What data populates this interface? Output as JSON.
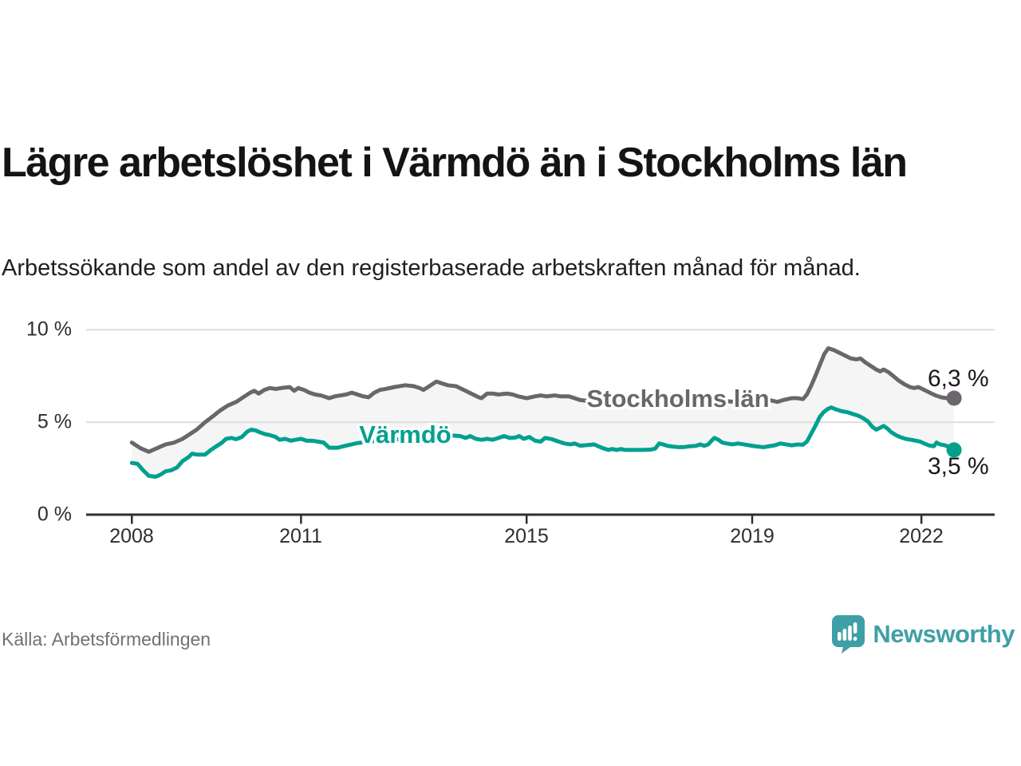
{
  "title": "Lägre arbetslöshet i Värmdö än i Stockholms län",
  "subtitle": "Arbetssökande som andel av den registerbaserade arbetskraften månad för månad.",
  "source": "Källa: Arbetsförmedlingen",
  "brand": {
    "name": "Newsworthy",
    "color": "#3f9fa6",
    "icon": "newsworthy-badge-icon"
  },
  "chart_data": {
    "type": "line",
    "unit": "%",
    "grid": "horizontal",
    "ylim": [
      0,
      10.5
    ],
    "x_range": [
      2008.0,
      2022.58
    ],
    "y_ticks": [
      0,
      5,
      10
    ],
    "y_tick_labels": [
      "0 %",
      "5 %",
      "10 %"
    ],
    "x_ticks": [
      2008,
      2011,
      2015,
      2019,
      2022
    ],
    "x_tick_labels": [
      "2008",
      "2011",
      "2015",
      "2019",
      "2022"
    ],
    "band_fill": "#f5f5f5",
    "gridline_color": "#dedede",
    "axis_color": "#2f2f2f",
    "series": [
      {
        "name": "Stockholms län",
        "color": "#6b656c",
        "end_label": "6,3 %",
        "end_value": 6.3,
        "points": [
          [
            2008.0,
            3.9
          ],
          [
            2008.15,
            3.6
          ],
          [
            2008.3,
            3.4
          ],
          [
            2008.45,
            3.6
          ],
          [
            2008.6,
            3.8
          ],
          [
            2008.75,
            3.9
          ],
          [
            2008.9,
            4.1
          ],
          [
            2009.0,
            4.3
          ],
          [
            2009.15,
            4.6
          ],
          [
            2009.3,
            5.0
          ],
          [
            2009.45,
            5.35
          ],
          [
            2009.55,
            5.6
          ],
          [
            2009.7,
            5.9
          ],
          [
            2009.85,
            6.1
          ],
          [
            2010.0,
            6.4
          ],
          [
            2010.1,
            6.6
          ],
          [
            2010.17,
            6.7
          ],
          [
            2010.25,
            6.55
          ],
          [
            2010.35,
            6.75
          ],
          [
            2010.45,
            6.85
          ],
          [
            2010.55,
            6.8
          ],
          [
            2010.65,
            6.85
          ],
          [
            2010.8,
            6.9
          ],
          [
            2010.88,
            6.7
          ],
          [
            2010.95,
            6.85
          ],
          [
            2011.05,
            6.75
          ],
          [
            2011.15,
            6.6
          ],
          [
            2011.25,
            6.5
          ],
          [
            2011.35,
            6.45
          ],
          [
            2011.5,
            6.3
          ],
          [
            2011.6,
            6.4
          ],
          [
            2011.7,
            6.45
          ],
          [
            2011.8,
            6.5
          ],
          [
            2011.9,
            6.6
          ],
          [
            2012.0,
            6.5
          ],
          [
            2012.1,
            6.4
          ],
          [
            2012.2,
            6.35
          ],
          [
            2012.3,
            6.6
          ],
          [
            2012.4,
            6.75
          ],
          [
            2012.5,
            6.8
          ],
          [
            2012.65,
            6.9
          ],
          [
            2012.75,
            6.95
          ],
          [
            2012.85,
            7.0
          ],
          [
            2013.0,
            6.95
          ],
          [
            2013.1,
            6.85
          ],
          [
            2013.17,
            6.75
          ],
          [
            2013.25,
            6.9
          ],
          [
            2013.4,
            7.2
          ],
          [
            2013.5,
            7.1
          ],
          [
            2013.6,
            7.0
          ],
          [
            2013.75,
            6.95
          ],
          [
            2013.85,
            6.8
          ],
          [
            2013.95,
            6.65
          ],
          [
            2014.05,
            6.5
          ],
          [
            2014.15,
            6.35
          ],
          [
            2014.2,
            6.3
          ],
          [
            2014.3,
            6.55
          ],
          [
            2014.4,
            6.55
          ],
          [
            2014.5,
            6.5
          ],
          [
            2014.65,
            6.55
          ],
          [
            2014.75,
            6.5
          ],
          [
            2014.85,
            6.4
          ],
          [
            2015.0,
            6.3
          ],
          [
            2015.15,
            6.4
          ],
          [
            2015.25,
            6.45
          ],
          [
            2015.35,
            6.4
          ],
          [
            2015.5,
            6.45
          ],
          [
            2015.6,
            6.4
          ],
          [
            2015.75,
            6.4
          ],
          [
            2015.85,
            6.3
          ],
          [
            2015.95,
            6.2
          ],
          [
            2016.1,
            6.15
          ],
          [
            2016.3,
            6.2
          ],
          [
            2016.5,
            6.25
          ],
          [
            2016.7,
            6.2
          ],
          [
            2016.9,
            6.15
          ],
          [
            2017.1,
            6.2
          ],
          [
            2017.3,
            6.15
          ],
          [
            2017.5,
            6.1
          ],
          [
            2017.7,
            6.15
          ],
          [
            2017.9,
            6.1
          ],
          [
            2018.1,
            6.15
          ],
          [
            2018.3,
            6.2
          ],
          [
            2018.5,
            6.15
          ],
          [
            2018.7,
            6.1
          ],
          [
            2018.9,
            6.15
          ],
          [
            2019.1,
            6.2
          ],
          [
            2019.3,
            6.2
          ],
          [
            2019.45,
            6.1
          ],
          [
            2019.55,
            6.2
          ],
          [
            2019.7,
            6.3
          ],
          [
            2019.8,
            6.3
          ],
          [
            2019.9,
            6.25
          ],
          [
            2019.97,
            6.5
          ],
          [
            2020.05,
            7.0
          ],
          [
            2020.12,
            7.5
          ],
          [
            2020.2,
            8.1
          ],
          [
            2020.28,
            8.7
          ],
          [
            2020.35,
            9.0
          ],
          [
            2020.45,
            8.9
          ],
          [
            2020.55,
            8.75
          ],
          [
            2020.65,
            8.6
          ],
          [
            2020.75,
            8.45
          ],
          [
            2020.85,
            8.4
          ],
          [
            2020.92,
            8.45
          ],
          [
            2021.0,
            8.25
          ],
          [
            2021.1,
            8.05
          ],
          [
            2021.2,
            7.85
          ],
          [
            2021.27,
            7.75
          ],
          [
            2021.33,
            7.85
          ],
          [
            2021.42,
            7.7
          ],
          [
            2021.5,
            7.5
          ],
          [
            2021.6,
            7.25
          ],
          [
            2021.7,
            7.05
          ],
          [
            2021.8,
            6.9
          ],
          [
            2021.87,
            6.85
          ],
          [
            2021.95,
            6.9
          ],
          [
            2022.05,
            6.75
          ],
          [
            2022.15,
            6.6
          ],
          [
            2022.25,
            6.45
          ],
          [
            2022.35,
            6.35
          ],
          [
            2022.45,
            6.3
          ],
          [
            2022.55,
            6.35
          ],
          [
            2022.58,
            6.3
          ]
        ]
      },
      {
        "name": "Värmdö",
        "color": "#00a08f",
        "end_label": "3,5 %",
        "end_value": 3.5,
        "points": [
          [
            2008.0,
            2.8
          ],
          [
            2008.1,
            2.75
          ],
          [
            2008.2,
            2.4
          ],
          [
            2008.3,
            2.1
          ],
          [
            2008.42,
            2.05
          ],
          [
            2008.5,
            2.15
          ],
          [
            2008.6,
            2.35
          ],
          [
            2008.7,
            2.4
          ],
          [
            2008.8,
            2.55
          ],
          [
            2008.9,
            2.9
          ],
          [
            2009.0,
            3.1
          ],
          [
            2009.07,
            3.3
          ],
          [
            2009.15,
            3.25
          ],
          [
            2009.3,
            3.25
          ],
          [
            2009.4,
            3.5
          ],
          [
            2009.5,
            3.7
          ],
          [
            2009.6,
            3.9
          ],
          [
            2009.67,
            4.1
          ],
          [
            2009.77,
            4.15
          ],
          [
            2009.85,
            4.08
          ],
          [
            2009.95,
            4.2
          ],
          [
            2010.05,
            4.5
          ],
          [
            2010.12,
            4.6
          ],
          [
            2010.2,
            4.55
          ],
          [
            2010.27,
            4.45
          ],
          [
            2010.37,
            4.35
          ],
          [
            2010.45,
            4.3
          ],
          [
            2010.55,
            4.2
          ],
          [
            2010.62,
            4.05
          ],
          [
            2010.72,
            4.1
          ],
          [
            2010.82,
            4.0
          ],
          [
            2010.9,
            4.05
          ],
          [
            2011.0,
            4.1
          ],
          [
            2011.1,
            4.0
          ],
          [
            2011.2,
            4.0
          ],
          [
            2011.3,
            3.95
          ],
          [
            2011.4,
            3.9
          ],
          [
            2011.5,
            3.62
          ],
          [
            2011.65,
            3.62
          ],
          [
            2011.75,
            3.7
          ],
          [
            2011.85,
            3.77
          ],
          [
            2012.0,
            3.87
          ],
          [
            2012.2,
            3.95
          ],
          [
            2012.4,
            4.0
          ],
          [
            2012.6,
            4.05
          ],
          [
            2012.8,
            4.1
          ],
          [
            2013.0,
            4.2
          ],
          [
            2013.25,
            4.3
          ],
          [
            2013.5,
            4.3
          ],
          [
            2013.7,
            4.28
          ],
          [
            2013.82,
            4.25
          ],
          [
            2013.92,
            4.15
          ],
          [
            2014.0,
            4.25
          ],
          [
            2014.1,
            4.1
          ],
          [
            2014.2,
            4.05
          ],
          [
            2014.3,
            4.1
          ],
          [
            2014.4,
            4.05
          ],
          [
            2014.5,
            4.15
          ],
          [
            2014.6,
            4.25
          ],
          [
            2014.7,
            4.15
          ],
          [
            2014.8,
            4.17
          ],
          [
            2014.87,
            4.25
          ],
          [
            2014.95,
            4.1
          ],
          [
            2015.05,
            4.2
          ],
          [
            2015.15,
            4.0
          ],
          [
            2015.25,
            3.95
          ],
          [
            2015.33,
            4.15
          ],
          [
            2015.45,
            4.08
          ],
          [
            2015.57,
            3.95
          ],
          [
            2015.67,
            3.85
          ],
          [
            2015.78,
            3.8
          ],
          [
            2015.85,
            3.85
          ],
          [
            2015.95,
            3.73
          ],
          [
            2016.1,
            3.77
          ],
          [
            2016.2,
            3.8
          ],
          [
            2016.27,
            3.7
          ],
          [
            2016.35,
            3.6
          ],
          [
            2016.45,
            3.5
          ],
          [
            2016.52,
            3.55
          ],
          [
            2016.6,
            3.5
          ],
          [
            2016.67,
            3.55
          ],
          [
            2016.75,
            3.5
          ],
          [
            2016.9,
            3.5
          ],
          [
            2017.05,
            3.5
          ],
          [
            2017.2,
            3.52
          ],
          [
            2017.28,
            3.57
          ],
          [
            2017.35,
            3.85
          ],
          [
            2017.42,
            3.8
          ],
          [
            2017.5,
            3.72
          ],
          [
            2017.6,
            3.68
          ],
          [
            2017.7,
            3.65
          ],
          [
            2017.8,
            3.66
          ],
          [
            2017.9,
            3.7
          ],
          [
            2018.0,
            3.72
          ],
          [
            2018.08,
            3.8
          ],
          [
            2018.15,
            3.72
          ],
          [
            2018.22,
            3.8
          ],
          [
            2018.28,
            4.0
          ],
          [
            2018.33,
            4.15
          ],
          [
            2018.4,
            4.05
          ],
          [
            2018.47,
            3.9
          ],
          [
            2018.55,
            3.85
          ],
          [
            2018.65,
            3.8
          ],
          [
            2018.75,
            3.85
          ],
          [
            2018.85,
            3.8
          ],
          [
            2018.95,
            3.75
          ],
          [
            2019.05,
            3.7
          ],
          [
            2019.2,
            3.65
          ],
          [
            2019.3,
            3.7
          ],
          [
            2019.4,
            3.75
          ],
          [
            2019.5,
            3.85
          ],
          [
            2019.6,
            3.8
          ],
          [
            2019.7,
            3.75
          ],
          [
            2019.82,
            3.8
          ],
          [
            2019.9,
            3.78
          ],
          [
            2019.97,
            3.95
          ],
          [
            2020.05,
            4.4
          ],
          [
            2020.12,
            4.8
          ],
          [
            2020.2,
            5.3
          ],
          [
            2020.27,
            5.55
          ],
          [
            2020.33,
            5.7
          ],
          [
            2020.4,
            5.8
          ],
          [
            2020.48,
            5.7
          ],
          [
            2020.58,
            5.6
          ],
          [
            2020.68,
            5.55
          ],
          [
            2020.78,
            5.45
          ],
          [
            2020.88,
            5.35
          ],
          [
            2020.95,
            5.25
          ],
          [
            2021.05,
            5.05
          ],
          [
            2021.13,
            4.75
          ],
          [
            2021.2,
            4.6
          ],
          [
            2021.27,
            4.7
          ],
          [
            2021.33,
            4.8
          ],
          [
            2021.4,
            4.65
          ],
          [
            2021.47,
            4.45
          ],
          [
            2021.55,
            4.3
          ],
          [
            2021.62,
            4.2
          ],
          [
            2021.72,
            4.1
          ],
          [
            2021.82,
            4.05
          ],
          [
            2021.9,
            4.0
          ],
          [
            2021.98,
            3.95
          ],
          [
            2022.05,
            3.85
          ],
          [
            2022.13,
            3.75
          ],
          [
            2022.22,
            3.7
          ],
          [
            2022.27,
            3.9
          ],
          [
            2022.33,
            3.8
          ],
          [
            2022.42,
            3.75
          ],
          [
            2022.48,
            3.68
          ],
          [
            2022.53,
            3.6
          ],
          [
            2022.58,
            3.5
          ]
        ]
      }
    ]
  }
}
